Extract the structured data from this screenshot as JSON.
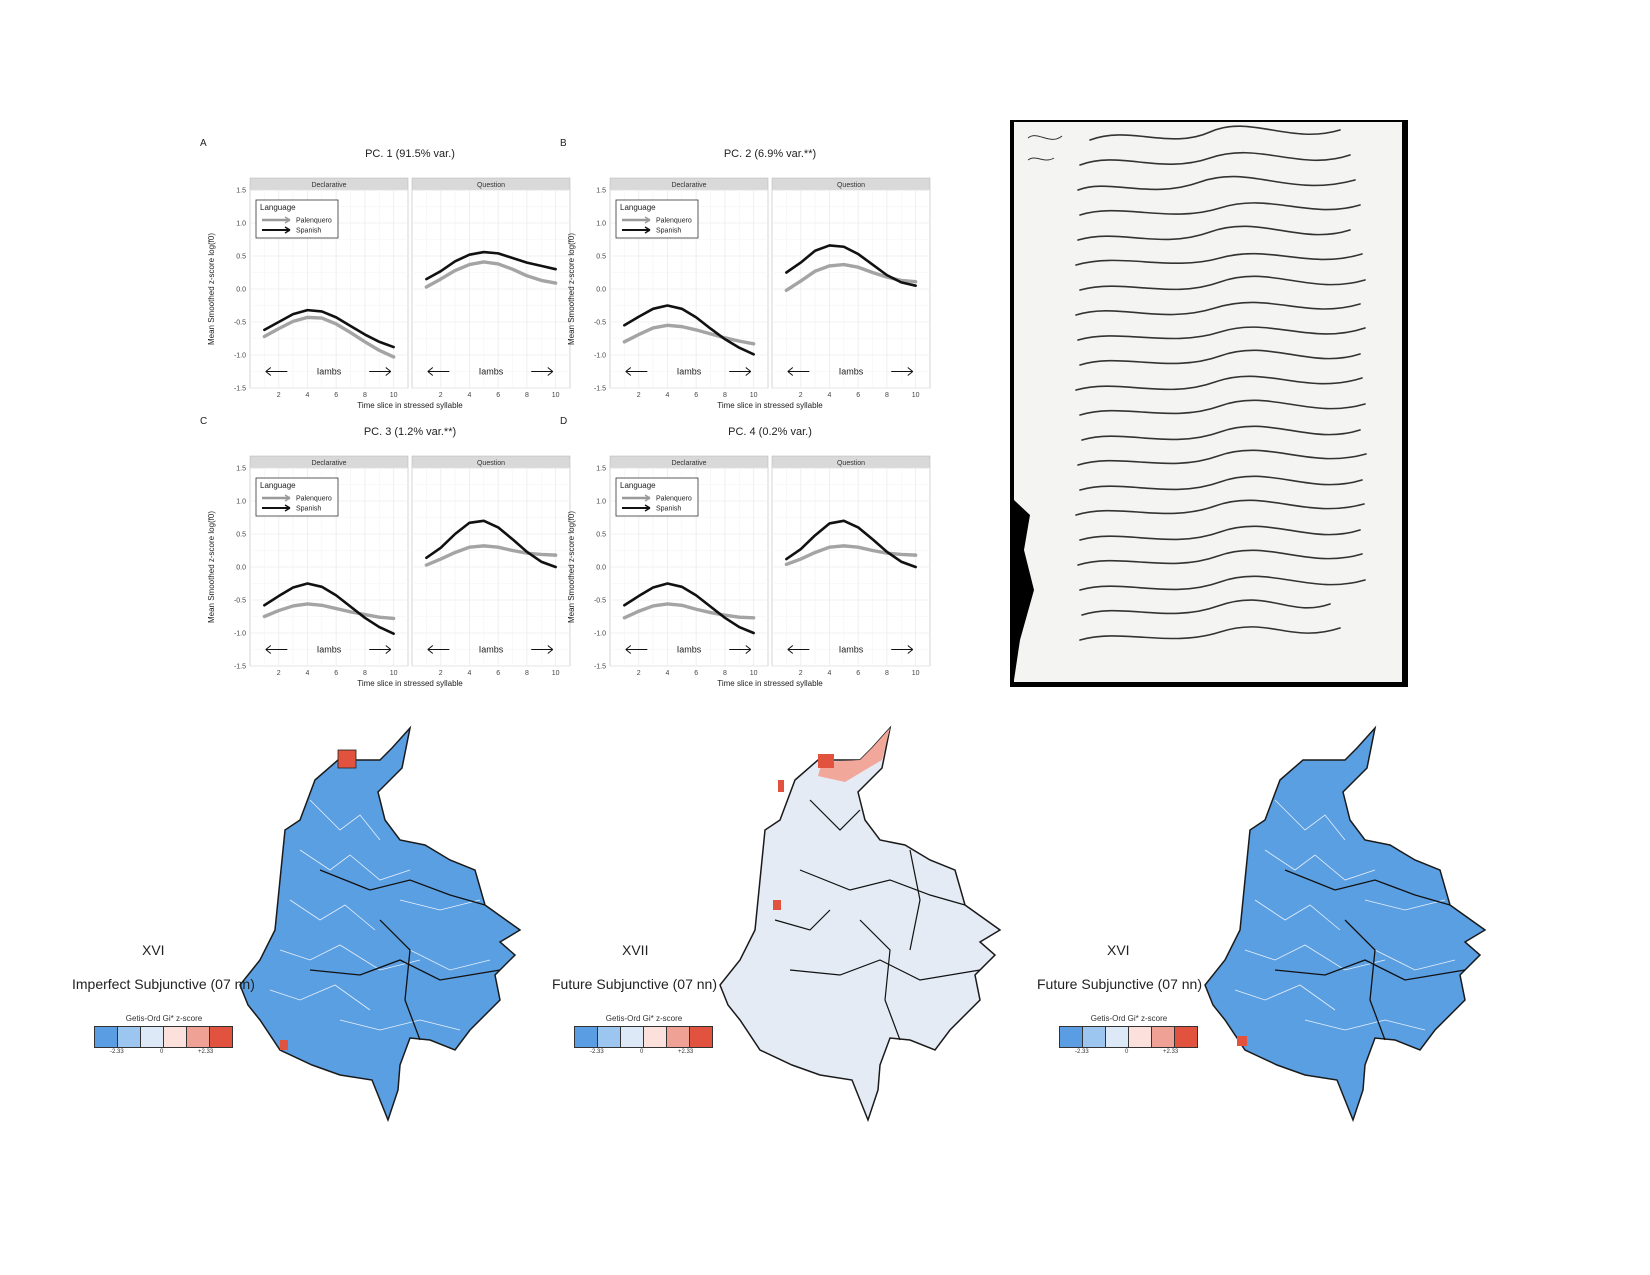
{
  "colors": {
    "palenquero": "#9a9a9a",
    "spanish": "#111111",
    "panel_header": "#d9d9d9",
    "grid": "#ebebeb",
    "map_blue": "#5b9fe3",
    "map_pale": "#e4ebf5",
    "map_red": "#e2533f",
    "map_pink": "#f2a79b",
    "legend": [
      "#5a9de3",
      "#9cc6f0",
      "#dde9f6",
      "#fbe0dc",
      "#f0a195",
      "#e2533f"
    ]
  },
  "chart_data": [
    {
      "type": "line",
      "panel_letter": "A",
      "title": "PC. 1 (91.5% var.)",
      "facets": [
        "Declarative",
        "Question"
      ],
      "xlabel": "Time slice in stressed syllable",
      "ylabel": "Mean Smoothed z-score log(f0)",
      "xlim": [
        0,
        11
      ],
      "ylim": [
        -1.5,
        1.5
      ],
      "x_ticks": [
        2,
        4,
        6,
        8,
        10
      ],
      "y_ticks": [
        "-1.5",
        "-1.0",
        "-0.5",
        "0.0",
        "0.5",
        "1.0",
        "1.5"
      ],
      "annotation": "Iambs",
      "legend": {
        "title": "Language",
        "position": "top-left"
      },
      "x": [
        1,
        2,
        3,
        4,
        5,
        6,
        7,
        8,
        9,
        10
      ],
      "series": [
        {
          "name": "Palenquero",
          "facet": "Declarative",
          "values": [
            -0.72,
            -0.6,
            -0.49,
            -0.43,
            -0.44,
            -0.53,
            -0.66,
            -0.8,
            -0.93,
            -1.03
          ]
        },
        {
          "name": "Spanish",
          "facet": "Declarative",
          "values": [
            -0.62,
            -0.5,
            -0.38,
            -0.32,
            -0.34,
            -0.43,
            -0.56,
            -0.69,
            -0.8,
            -0.88
          ]
        },
        {
          "name": "Palenquero",
          "facet": "Question",
          "values": [
            0.03,
            0.15,
            0.28,
            0.37,
            0.41,
            0.38,
            0.3,
            0.2,
            0.13,
            0.09
          ]
        },
        {
          "name": "Spanish",
          "facet": "Question",
          "values": [
            0.15,
            0.27,
            0.42,
            0.52,
            0.56,
            0.54,
            0.47,
            0.4,
            0.35,
            0.3
          ]
        }
      ]
    },
    {
      "type": "line",
      "panel_letter": "B",
      "title": "PC. 2 (6.9% var.**)",
      "facets": [
        "Declarative",
        "Question"
      ],
      "xlabel": "Time slice in stressed syllable",
      "ylabel": "Mean Smoothed z-score log(f0)",
      "xlim": [
        0,
        11
      ],
      "ylim": [
        -1.5,
        1.5
      ],
      "x_ticks": [
        2,
        4,
        6,
        8,
        10
      ],
      "y_ticks": [
        "-1.5",
        "-1.0",
        "-0.5",
        "0.0",
        "0.5",
        "1.0",
        "1.5"
      ],
      "annotation": "Iambs",
      "legend": {
        "title": "Language",
        "position": "top-left"
      },
      "x": [
        1,
        2,
        3,
        4,
        5,
        6,
        7,
        8,
        9,
        10
      ],
      "series": [
        {
          "name": "Palenquero",
          "facet": "Declarative",
          "values": [
            -0.8,
            -0.69,
            -0.59,
            -0.55,
            -0.57,
            -0.62,
            -0.68,
            -0.74,
            -0.79,
            -0.83
          ]
        },
        {
          "name": "Spanish",
          "facet": "Declarative",
          "values": [
            -0.55,
            -0.42,
            -0.3,
            -0.25,
            -0.3,
            -0.43,
            -0.6,
            -0.76,
            -0.89,
            -0.99
          ]
        },
        {
          "name": "Palenquero",
          "facet": "Question",
          "values": [
            -0.02,
            0.12,
            0.27,
            0.35,
            0.37,
            0.33,
            0.25,
            0.18,
            0.13,
            0.11
          ]
        },
        {
          "name": "Spanish",
          "facet": "Question",
          "values": [
            0.25,
            0.4,
            0.58,
            0.66,
            0.64,
            0.53,
            0.37,
            0.21,
            0.1,
            0.05
          ]
        }
      ]
    },
    {
      "type": "line",
      "panel_letter": "C",
      "title": "PC. 3 (1.2% var.**)",
      "facets": [
        "Declarative",
        "Question"
      ],
      "xlabel": "Time slice in stressed syllable",
      "ylabel": "Mean Smoothed z-score log(f0)",
      "xlim": [
        0,
        11
      ],
      "ylim": [
        -1.5,
        1.5
      ],
      "x_ticks": [
        2,
        4,
        6,
        8,
        10
      ],
      "y_ticks": [
        "-1.5",
        "-1.0",
        "-0.5",
        "0.0",
        "0.5",
        "1.0",
        "1.5"
      ],
      "annotation": "Iambs",
      "legend": {
        "title": "Language",
        "position": "top-left"
      },
      "x": [
        1,
        2,
        3,
        4,
        5,
        6,
        7,
        8,
        9,
        10
      ],
      "series": [
        {
          "name": "Palenquero",
          "facet": "Declarative",
          "values": [
            -0.75,
            -0.66,
            -0.59,
            -0.56,
            -0.58,
            -0.63,
            -0.68,
            -0.72,
            -0.76,
            -0.78
          ]
        },
        {
          "name": "Spanish",
          "facet": "Declarative",
          "values": [
            -0.58,
            -0.44,
            -0.31,
            -0.25,
            -0.3,
            -0.43,
            -0.6,
            -0.77,
            -0.91,
            -1.01
          ]
        },
        {
          "name": "Palenquero",
          "facet": "Question",
          "values": [
            0.03,
            0.12,
            0.22,
            0.3,
            0.32,
            0.3,
            0.25,
            0.21,
            0.19,
            0.18
          ]
        },
        {
          "name": "Spanish",
          "facet": "Question",
          "values": [
            0.14,
            0.29,
            0.5,
            0.67,
            0.7,
            0.6,
            0.42,
            0.23,
            0.08,
            0.0
          ]
        }
      ]
    },
    {
      "type": "line",
      "panel_letter": "D",
      "title": "PC. 4 (0.2% var.)",
      "facets": [
        "Declarative",
        "Question"
      ],
      "xlabel": "Time slice in stressed syllable",
      "ylabel": "Mean Smoothed z-score log(f0)",
      "xlim": [
        0,
        11
      ],
      "ylim": [
        -1.5,
        1.5
      ],
      "x_ticks": [
        2,
        4,
        6,
        8,
        10
      ],
      "y_ticks": [
        "-1.5",
        "-1.0",
        "-0.5",
        "0.0",
        "0.5",
        "1.0",
        "1.5"
      ],
      "annotation": "Iambs",
      "legend": {
        "title": "Language",
        "position": "top-left"
      },
      "x": [
        1,
        2,
        3,
        4,
        5,
        6,
        7,
        8,
        9,
        10
      ],
      "series": [
        {
          "name": "Palenquero",
          "facet": "Declarative",
          "values": [
            -0.77,
            -0.67,
            -0.59,
            -0.56,
            -0.58,
            -0.64,
            -0.69,
            -0.73,
            -0.76,
            -0.77
          ]
        },
        {
          "name": "Spanish",
          "facet": "Declarative",
          "values": [
            -0.58,
            -0.44,
            -0.31,
            -0.25,
            -0.3,
            -0.43,
            -0.6,
            -0.77,
            -0.91,
            -1.0
          ]
        },
        {
          "name": "Palenquero",
          "facet": "Question",
          "values": [
            0.04,
            0.12,
            0.22,
            0.3,
            0.32,
            0.3,
            0.25,
            0.21,
            0.19,
            0.18
          ]
        },
        {
          "name": "Spanish",
          "facet": "Question",
          "values": [
            0.12,
            0.27,
            0.48,
            0.66,
            0.7,
            0.6,
            0.42,
            0.23,
            0.08,
            0.0
          ]
        }
      ]
    }
  ],
  "maps": [
    {
      "century": "XVI",
      "caption": "Imperfect Subjunctive (07 nn)",
      "fill": "blue"
    },
    {
      "century": "XVII",
      "caption": "Future Subjunctive (07 nn)",
      "fill": "pale"
    },
    {
      "century": "XVI",
      "caption": "Future Subjunctive (07 nn)",
      "fill": "blue"
    }
  ],
  "legend": {
    "title": "Getis-Ord Gi* z-score",
    "ticks": [
      "-2.33",
      "0",
      "+2.33"
    ]
  }
}
